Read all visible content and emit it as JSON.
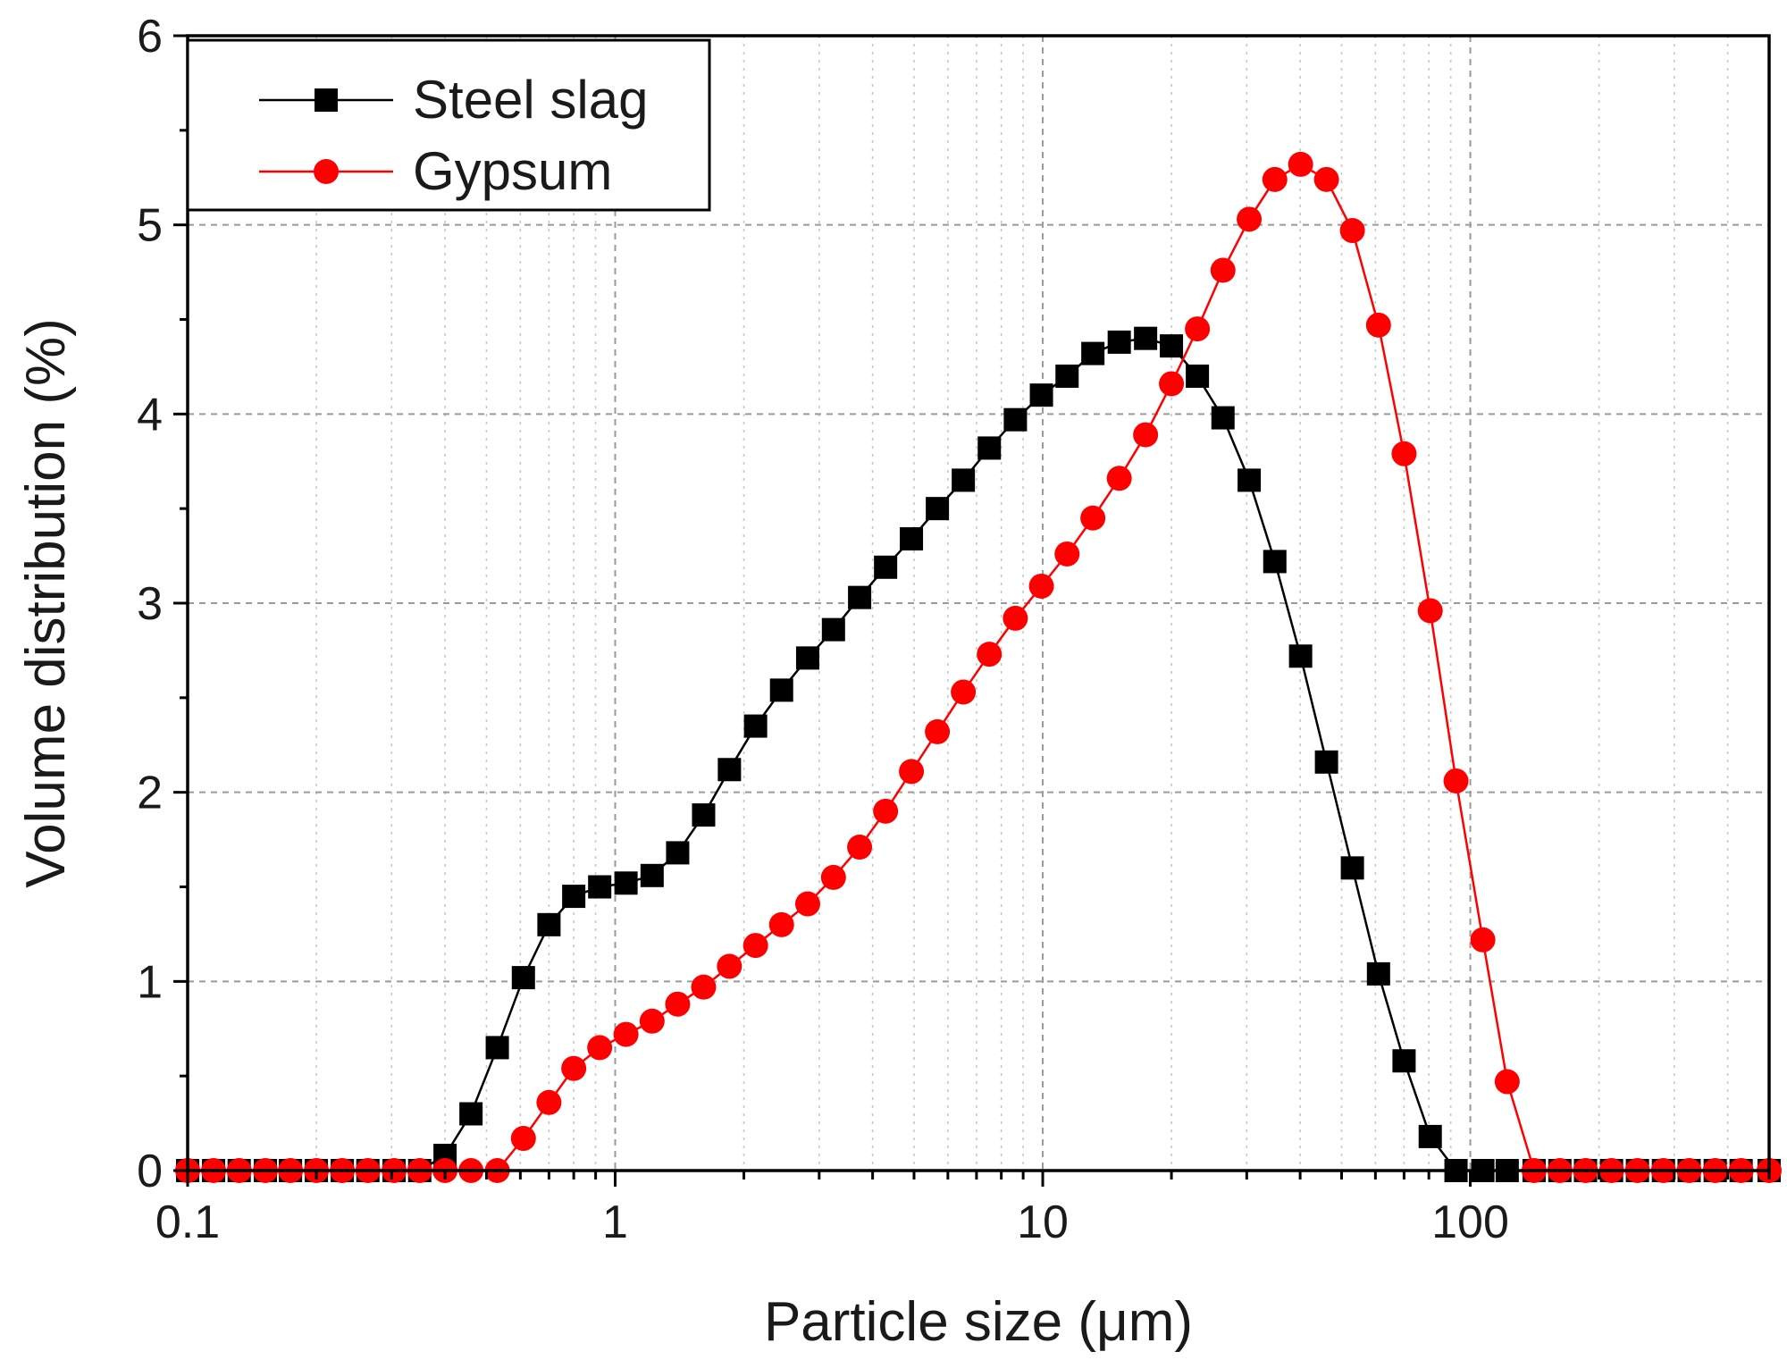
{
  "chart_data": {
    "type": "line",
    "title": "",
    "xlabel": "Particle size (μm)",
    "ylabel": "Volume distribution (%)",
    "xscale": "log",
    "xlim": [
      0.1,
      500
    ],
    "ylim": [
      0,
      6
    ],
    "xticks": [
      {
        "value": 0.1,
        "label": "0.1"
      },
      {
        "value": 1,
        "label": "1"
      },
      {
        "value": 10,
        "label": "10"
      },
      {
        "value": 100,
        "label": "100"
      }
    ],
    "yticks": [
      {
        "value": 0,
        "label": "0"
      },
      {
        "value": 1,
        "label": "1"
      },
      {
        "value": 2,
        "label": "2"
      },
      {
        "value": 3,
        "label": "3"
      },
      {
        "value": 4,
        "label": "4"
      },
      {
        "value": 5,
        "label": "5"
      },
      {
        "value": 6,
        "label": "6"
      }
    ],
    "grid": true,
    "legend_position": "top-left",
    "series": [
      {
        "name": "Steel slag",
        "color": "#000000",
        "marker": "square",
        "x": [
          0.1,
          0.115,
          0.132,
          0.152,
          0.174,
          0.2,
          0.23,
          0.264,
          0.304,
          0.349,
          0.4,
          0.46,
          0.53,
          0.61,
          0.7,
          0.8,
          0.92,
          1.06,
          1.22,
          1.4,
          1.61,
          1.85,
          2.13,
          2.45,
          2.82,
          3.24,
          3.73,
          4.29,
          4.93,
          5.67,
          6.52,
          7.5,
          8.63,
          9.93,
          11.4,
          13.1,
          15.1,
          17.4,
          20,
          23,
          26.4,
          30.4,
          34.9,
          40.1,
          46.1,
          53,
          61,
          70,
          80.6,
          92.6,
          107,
          122,
          141,
          162,
          186,
          214,
          246,
          283,
          325,
          374,
          430,
          500
        ],
        "y": [
          0,
          0,
          0,
          0,
          0,
          0,
          0,
          0,
          0,
          0,
          0.08,
          0.3,
          0.65,
          1.02,
          1.3,
          1.45,
          1.5,
          1.52,
          1.56,
          1.68,
          1.88,
          2.12,
          2.35,
          2.54,
          2.71,
          2.86,
          3.03,
          3.19,
          3.34,
          3.5,
          3.65,
          3.82,
          3.97,
          4.1,
          4.2,
          4.32,
          4.38,
          4.4,
          4.36,
          4.2,
          3.98,
          3.65,
          3.22,
          2.72,
          2.16,
          1.6,
          1.04,
          0.58,
          0.18,
          0,
          0,
          0,
          0,
          0,
          0,
          0,
          0,
          0,
          0,
          0,
          0,
          0
        ]
      },
      {
        "name": "Gypsum",
        "color": "#ff0000",
        "marker": "circle",
        "x": [
          0.1,
          0.115,
          0.132,
          0.152,
          0.174,
          0.2,
          0.23,
          0.264,
          0.304,
          0.349,
          0.4,
          0.46,
          0.53,
          0.61,
          0.7,
          0.8,
          0.92,
          1.06,
          1.22,
          1.4,
          1.61,
          1.85,
          2.13,
          2.45,
          2.82,
          3.24,
          3.73,
          4.29,
          4.93,
          5.67,
          6.52,
          7.5,
          8.63,
          9.93,
          11.4,
          13.1,
          15.1,
          17.4,
          20,
          23,
          26.4,
          30.4,
          34.9,
          40.1,
          46.1,
          53,
          61,
          70,
          80.6,
          92.6,
          107,
          122,
          141,
          162,
          186,
          214,
          246,
          283,
          325,
          374,
          430,
          500
        ],
        "y": [
          0,
          0,
          0,
          0,
          0,
          0,
          0,
          0,
          0,
          0,
          0,
          0,
          0,
          0.17,
          0.36,
          0.54,
          0.65,
          0.72,
          0.79,
          0.88,
          0.97,
          1.08,
          1.19,
          1.3,
          1.41,
          1.55,
          1.71,
          1.9,
          2.11,
          2.32,
          2.53,
          2.73,
          2.92,
          3.09,
          3.26,
          3.45,
          3.66,
          3.89,
          4.16,
          4.45,
          4.76,
          5.03,
          5.24,
          5.32,
          5.24,
          4.97,
          4.47,
          3.79,
          2.96,
          2.06,
          1.22,
          0.47,
          0,
          0,
          0,
          0,
          0,
          0,
          0,
          0,
          0,
          0
        ]
      }
    ]
  }
}
